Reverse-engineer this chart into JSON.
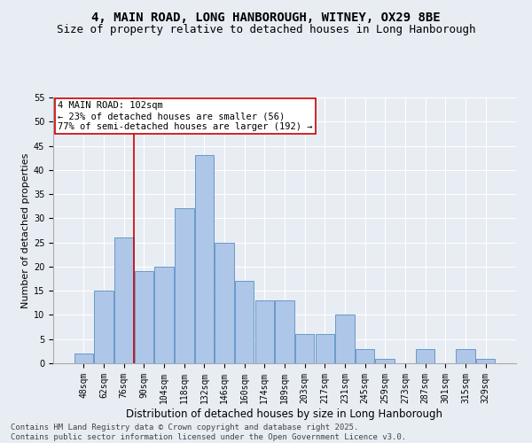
{
  "title1": "4, MAIN ROAD, LONG HANBOROUGH, WITNEY, OX29 8BE",
  "title2": "Size of property relative to detached houses in Long Hanborough",
  "xlabel": "Distribution of detached houses by size in Long Hanborough",
  "ylabel": "Number of detached properties",
  "bins": [
    "48sqm",
    "62sqm",
    "76sqm",
    "90sqm",
    "104sqm",
    "118sqm",
    "132sqm",
    "146sqm",
    "160sqm",
    "174sqm",
    "189sqm",
    "203sqm",
    "217sqm",
    "231sqm",
    "245sqm",
    "259sqm",
    "273sqm",
    "287sqm",
    "301sqm",
    "315sqm",
    "329sqm"
  ],
  "counts": [
    2,
    15,
    26,
    19,
    20,
    32,
    43,
    25,
    17,
    13,
    13,
    6,
    6,
    10,
    3,
    1,
    0,
    3,
    0,
    3,
    1
  ],
  "bar_color": "#aec6e8",
  "bar_edge_color": "#5a8fc2",
  "bg_color": "#e8edf4",
  "grid_color": "#ffffff",
  "annotation_line1": "4 MAIN ROAD: 102sqm",
  "annotation_line2": "← 23% of detached houses are smaller (56)",
  "annotation_line3": "77% of semi-detached houses are larger (192) →",
  "annotation_box_color": "#ffffff",
  "annotation_box_edge": "#cc0000",
  "vline_color": "#cc0000",
  "vline_x": 2.5,
  "ylim": [
    0,
    55
  ],
  "yticks": [
    0,
    5,
    10,
    15,
    20,
    25,
    30,
    35,
    40,
    45,
    50,
    55
  ],
  "footnote": "Contains HM Land Registry data © Crown copyright and database right 2025.\nContains public sector information licensed under the Open Government Licence v3.0.",
  "footnote_fontsize": 6.5,
  "title1_fontsize": 10,
  "title2_fontsize": 9,
  "xlabel_fontsize": 8.5,
  "ylabel_fontsize": 8,
  "tick_fontsize": 7,
  "annotation_fontsize": 7.5
}
